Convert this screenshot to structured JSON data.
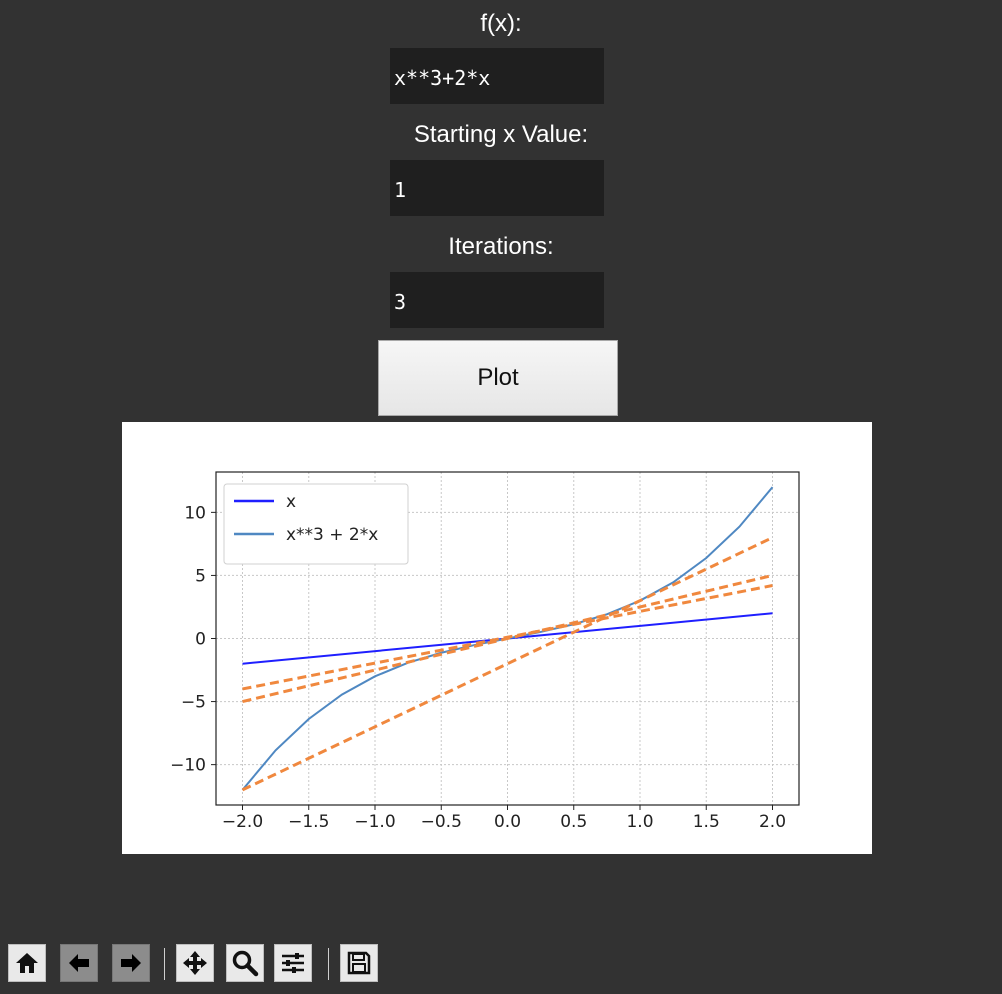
{
  "form": {
    "fx_label": "f(x):",
    "fx_value": "x**3+2*x",
    "start_label": "Starting x Value:",
    "start_value": "1",
    "iter_label": "Iterations:",
    "iter_value": "3",
    "plot_label": "Plot"
  },
  "toolbar": {
    "icons": [
      "home-icon",
      "back-icon",
      "forward-icon",
      "pan-icon",
      "zoom-icon",
      "configure-subplots-icon",
      "save-icon"
    ]
  },
  "chart_data": {
    "type": "line",
    "title": "",
    "xlabel": "",
    "ylabel": "",
    "xlim": [
      -2.2,
      2.2
    ],
    "ylim": [
      -13.2,
      13.2
    ],
    "xticks": [
      -2.0,
      -1.5,
      -1.0,
      -0.5,
      0.0,
      0.5,
      1.0,
      1.5,
      2.0
    ],
    "xtick_labels": [
      "−2.0",
      "−1.5",
      "−1.0",
      "−0.5",
      "0.0",
      "0.5",
      "1.0",
      "1.5",
      "2.0"
    ],
    "yticks": [
      10,
      5,
      0,
      -5,
      -10
    ],
    "ytick_labels": [
      "10",
      "5",
      "0",
      "−5",
      "−10"
    ],
    "grid": true,
    "legend_position": "top-left",
    "series": [
      {
        "name": "x",
        "color": "#1f1fff",
        "style": "solid",
        "x": [
          -2,
          2
        ],
        "y": [
          -2,
          2
        ]
      },
      {
        "name": "x**3 + 2*x",
        "color": "#4f88c2",
        "style": "solid",
        "x": [
          -2.0,
          -1.75,
          -1.5,
          -1.25,
          -1.0,
          -0.75,
          -0.5,
          -0.25,
          0.0,
          0.25,
          0.5,
          0.75,
          1.0,
          1.25,
          1.5,
          1.75,
          2.0
        ],
        "y": [
          -12.0,
          -8.86,
          -6.38,
          -4.45,
          -3.0,
          -1.92,
          -1.13,
          -0.52,
          0.0,
          0.52,
          1.13,
          1.92,
          3.0,
          4.45,
          6.38,
          8.86,
          12.0
        ]
      },
      {
        "color": "#f0883e",
        "style": "dashed",
        "x": [
          -2,
          2
        ],
        "y": [
          -12.0,
          8.0
        ]
      },
      {
        "color": "#f0883e",
        "style": "dashed",
        "x": [
          -2,
          2
        ],
        "y": [
          -5.0,
          5.0
        ]
      },
      {
        "color": "#f0883e",
        "style": "dashed",
        "x": [
          -2,
          2
        ],
        "y": [
          -4.0,
          4.2
        ]
      }
    ]
  }
}
